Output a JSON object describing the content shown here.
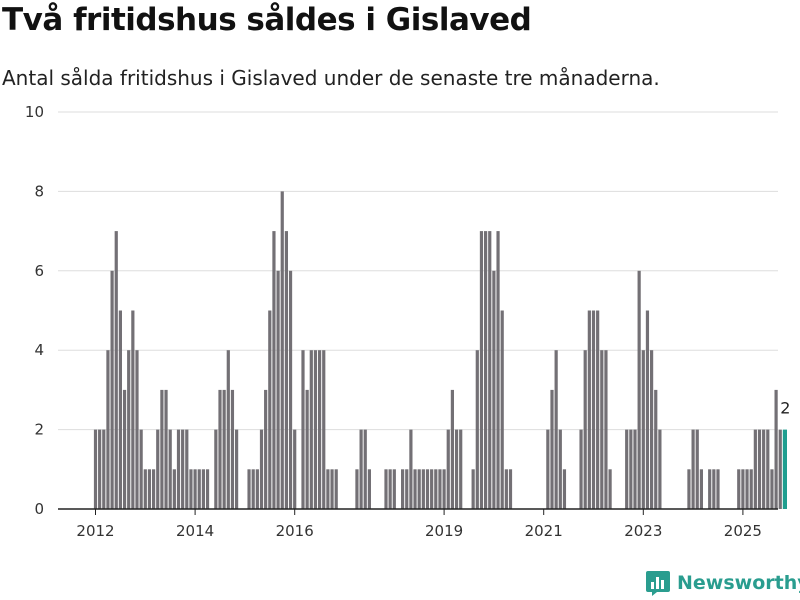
{
  "header": {
    "title": "Två fritidshus såldes i Gislaved",
    "subtitle": "Antal sålda fritidshus i Gislaved under de senaste tre månaderna."
  },
  "brand": {
    "name": "Newsworthy",
    "icon": "bar-chart-logo-icon",
    "color": "#2a9d8f"
  },
  "colors": {
    "bar": "#737075",
    "highlight": "#1f9e8f",
    "grid": "#dddddd"
  },
  "chart_data": {
    "type": "bar",
    "x_unit": "month",
    "start_month": "2012-01",
    "values": [
      2,
      2,
      2,
      4,
      6,
      7,
      5,
      3,
      4,
      5,
      4,
      2,
      1,
      1,
      1,
      2,
      3,
      3,
      2,
      1,
      2,
      2,
      2,
      1,
      1,
      1,
      1,
      1,
      0,
      2,
      3,
      3,
      4,
      3,
      2,
      0,
      0,
      1,
      1,
      1,
      2,
      3,
      5,
      7,
      6,
      8,
      7,
      6,
      2,
      0,
      4,
      3,
      4,
      4,
      4,
      4,
      1,
      1,
      1,
      0,
      0,
      0,
      0,
      1,
      2,
      2,
      1,
      0,
      0,
      0,
      1,
      1,
      1,
      0,
      1,
      1,
      2,
      1,
      1,
      1,
      1,
      1,
      1,
      1,
      1,
      2,
      3,
      2,
      2,
      0,
      0,
      1,
      4,
      7,
      7,
      7,
      6,
      7,
      5,
      1,
      1,
      0,
      0,
      0,
      0,
      0,
      0,
      0,
      0,
      2,
      3,
      4,
      2,
      1,
      0,
      0,
      0,
      2,
      4,
      5,
      5,
      5,
      4,
      4,
      1,
      0,
      0,
      0,
      2,
      2,
      2,
      6,
      4,
      5,
      4,
      3,
      2,
      0,
      0,
      0,
      0,
      0,
      0,
      1,
      2,
      2,
      1,
      0,
      1,
      1,
      1,
      0,
      0,
      0,
      0,
      1,
      1,
      1,
      1,
      2,
      2,
      2,
      2,
      1,
      3,
      2,
      2
    ],
    "highlight_last": true,
    "annotation": "2",
    "xticks": [
      {
        "label": "2012",
        "month_index": 0
      },
      {
        "label": "2014",
        "month_index": 24
      },
      {
        "label": "2016",
        "month_index": 48
      },
      {
        "label": "2019",
        "month_index": 84
      },
      {
        "label": "2021",
        "month_index": 108
      },
      {
        "label": "2023",
        "month_index": 132
      },
      {
        "label": "2025",
        "month_index": 156
      }
    ],
    "yticks": [
      "0",
      "2",
      "4",
      "6",
      "8",
      "10"
    ],
    "ylim": [
      0,
      10
    ],
    "grid": true
  }
}
